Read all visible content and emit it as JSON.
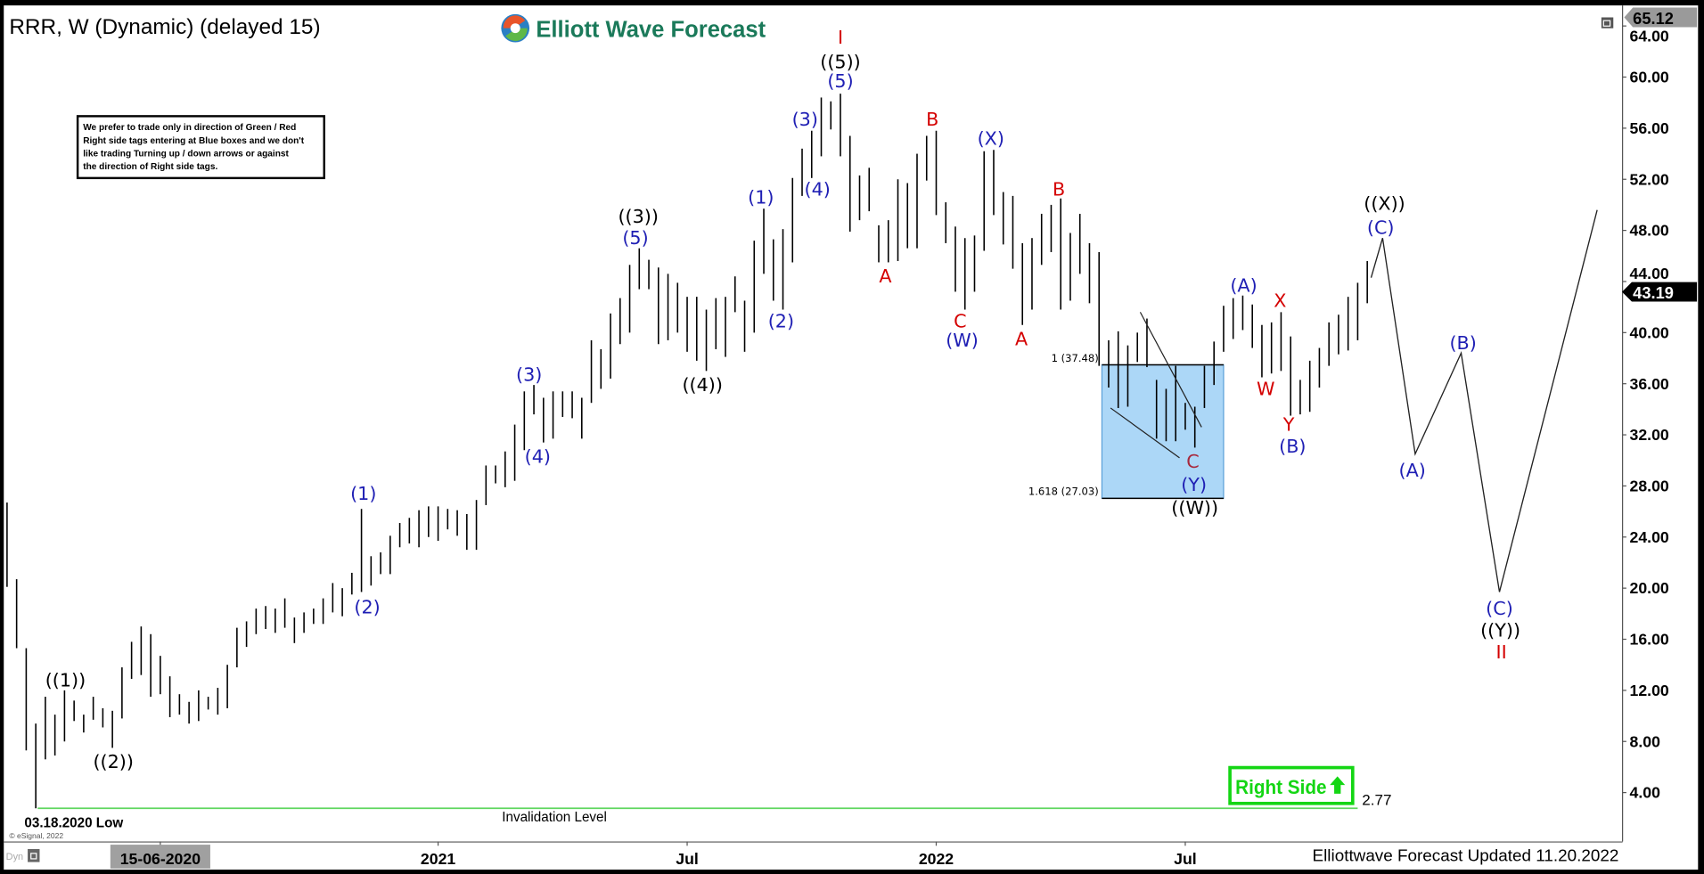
{
  "header": {
    "title": "RRR, W (Dynamic) (delayed 15)",
    "logo_text": "Elliott Wave Forecast"
  },
  "disclaimer": [
    "We prefer to trade only in direction of Green / Red",
    "Right side tags entering at Blue boxes and we don't",
    "like trading Turning up / down arrows or against",
    "the direction of Right side tags."
  ],
  "footer": {
    "updated": "Elliottwave Forecast Updated 11.20.2022",
    "copyright": "© eSignal, 2022",
    "dyn": "Dyn",
    "low_note": "03.18.2020 Low"
  },
  "colors": {
    "wave_blue": "#1f1fb4",
    "wave_red": "#d40000",
    "wave_black": "#000000",
    "fib_box": "#acd7f7",
    "invalidation": "#5fd65f",
    "right_side": "#14d614"
  },
  "chart_data": {
    "type": "ohlc-bar",
    "symbol": "RRR",
    "interval": "W",
    "ylim": [
      0.2,
      65.6
    ],
    "grid": false,
    "y_ticks": [
      "4.00",
      "8.00",
      "12.00",
      "16.00",
      "20.00",
      "24.00",
      "28.00",
      "32.00",
      "36.00",
      "40.00",
      "44.00",
      "48.00",
      "52.00",
      "56.00",
      "60.00",
      "64.00"
    ],
    "x_ticks": [
      {
        "label": "15-06-2020",
        "bar": 16,
        "highlight": true
      },
      {
        "label": "2021",
        "bar": 45
      },
      {
        "label": "Jul",
        "bar": 71
      },
      {
        "label": "2022",
        "bar": 97
      },
      {
        "label": "Jul",
        "bar": 123
      }
    ],
    "last_price": "43.19",
    "high_marker": "65.12",
    "bars_high_low": [
      [
        26.7,
        20.1
      ],
      [
        20.7,
        15.3
      ],
      [
        15.3,
        7.3
      ],
      [
        9.4,
        2.77
      ],
      [
        11.5,
        6.6
      ],
      [
        10.1,
        6.9
      ],
      [
        12.0,
        8.0
      ],
      [
        11.2,
        9.6
      ],
      [
        10.1,
        8.7
      ],
      [
        11.5,
        9.7
      ],
      [
        10.6,
        9.1
      ],
      [
        10.4,
        7.5
      ],
      [
        13.8,
        9.8
      ],
      [
        15.8,
        12.9
      ],
      [
        17.0,
        13.2
      ],
      [
        16.4,
        11.5
      ],
      [
        14.7,
        11.7
      ],
      [
        13.1,
        9.9
      ],
      [
        11.7,
        10.1
      ],
      [
        11.1,
        9.4
      ],
      [
        12.0,
        9.6
      ],
      [
        11.5,
        10.5
      ],
      [
        12.2,
        10.1
      ],
      [
        14.0,
        10.6
      ],
      [
        16.9,
        13.8
      ],
      [
        17.4,
        15.4
      ],
      [
        18.4,
        16.4
      ],
      [
        18.6,
        16.8
      ],
      [
        18.4,
        16.5
      ],
      [
        19.2,
        16.9
      ],
      [
        17.7,
        15.7
      ],
      [
        18.1,
        16.5
      ],
      [
        18.4,
        17.2
      ],
      [
        19.2,
        17.2
      ],
      [
        20.4,
        18.1
      ],
      [
        20.0,
        17.8
      ],
      [
        21.2,
        19.5
      ],
      [
        26.2,
        19.7
      ],
      [
        22.5,
        20.2
      ],
      [
        22.8,
        21.1
      ],
      [
        24.1,
        21.1
      ],
      [
        25.1,
        23.2
      ],
      [
        25.5,
        23.5
      ],
      [
        26.1,
        23.2
      ],
      [
        26.4,
        24.0
      ],
      [
        26.4,
        23.7
      ],
      [
        26.2,
        24.6
      ],
      [
        26.1,
        24.1
      ],
      [
        25.8,
        23.0
      ],
      [
        26.9,
        23.0
      ],
      [
        29.6,
        26.5
      ],
      [
        29.6,
        28.2
      ],
      [
        30.7,
        27.9
      ],
      [
        32.8,
        28.4
      ],
      [
        35.4,
        30.8
      ],
      [
        35.9,
        33.6
      ],
      [
        34.9,
        31.4
      ],
      [
        35.4,
        31.7
      ],
      [
        35.4,
        33.4
      ],
      [
        35.4,
        33.3
      ],
      [
        34.9,
        31.7
      ],
      [
        39.4,
        34.5
      ],
      [
        38.7,
        35.6
      ],
      [
        41.5,
        36.4
      ],
      [
        42.7,
        39.1
      ],
      [
        45.3,
        40.0
      ],
      [
        46.6,
        43.4
      ],
      [
        45.7,
        43.4
      ],
      [
        45.1,
        39.1
      ],
      [
        44.6,
        39.4
      ],
      [
        43.9,
        40.0
      ],
      [
        42.8,
        38.5
      ],
      [
        42.8,
        37.8
      ],
      [
        41.8,
        37.0
      ],
      [
        42.7,
        38.7
      ],
      [
        42.8,
        38.1
      ],
      [
        44.4,
        41.6
      ],
      [
        42.5,
        38.5
      ],
      [
        47.2,
        40.0
      ],
      [
        49.7,
        44.6
      ],
      [
        47.3,
        42.5
      ],
      [
        48.1,
        41.8
      ],
      [
        52.1,
        45.5
      ],
      [
        54.4,
        50.7
      ],
      [
        55.8,
        52.1
      ],
      [
        58.4,
        53.8
      ],
      [
        58.1,
        55.9
      ],
      [
        58.7,
        53.8
      ],
      [
        55.4,
        47.9
      ],
      [
        52.3,
        48.8
      ],
      [
        52.9,
        49.5
      ],
      [
        48.4,
        45.5
      ],
      [
        48.8,
        45.5
      ],
      [
        52.0,
        45.6
      ],
      [
        51.7,
        46.6
      ],
      [
        54.0,
        46.6
      ],
      [
        55.4,
        51.9
      ],
      [
        55.8,
        49.2
      ],
      [
        50.2,
        47.0
      ],
      [
        48.3,
        43.2
      ],
      [
        47.4,
        41.8
      ],
      [
        47.6,
        43.2
      ],
      [
        54.2,
        46.4
      ],
      [
        54.3,
        49.2
      ],
      [
        51.0,
        46.9
      ],
      [
        50.7,
        45.0
      ],
      [
        47.0,
        40.6
      ],
      [
        47.4,
        41.8
      ],
      [
        49.3,
        45.3
      ],
      [
        50.0,
        46.3
      ],
      [
        50.5,
        41.8
      ],
      [
        47.8,
        42.5
      ],
      [
        49.3,
        44.6
      ],
      [
        47.0,
        42.3
      ],
      [
        46.3,
        37.4
      ],
      [
        39.4,
        35.7
      ],
      [
        40.1,
        34.1
      ],
      [
        39.0,
        34.2
      ],
      [
        40.0,
        37.7
      ],
      [
        41.1,
        37.3
      ],
      [
        36.3,
        31.7
      ],
      [
        35.6,
        31.5
      ],
      [
        37.4,
        31.5
      ],
      [
        34.5,
        32.4
      ],
      [
        34.2,
        31.0
      ],
      [
        37.4,
        34.1
      ],
      [
        39.3,
        35.9
      ],
      [
        42.1,
        38.5
      ],
      [
        42.7,
        39.5
      ],
      [
        42.9,
        40.2
      ],
      [
        42.2,
        38.8
      ],
      [
        40.6,
        36.5
      ],
      [
        40.8,
        36.8
      ],
      [
        41.6,
        37.0
      ],
      [
        39.7,
        33.5
      ],
      [
        36.3,
        33.6
      ],
      [
        37.8,
        33.8
      ],
      [
        38.8,
        35.7
      ],
      [
        40.8,
        37.4
      ],
      [
        41.4,
        38.3
      ],
      [
        42.8,
        38.6
      ],
      [
        43.9,
        39.4
      ],
      [
        45.6,
        42.3
      ]
    ],
    "projection_path": [
      [
        142.4,
        44.3
      ],
      [
        143.6,
        47.4
      ],
      [
        147.0,
        30.5
      ],
      [
        151.8,
        38.4
      ],
      [
        155.8,
        19.7
      ],
      [
        166.0,
        49.6
      ]
    ],
    "fib_box": {
      "bar_from": 114.3,
      "bar_to": 127.0,
      "upper": 37.48,
      "lower": 27.03,
      "upper_label": "1 (37.48)",
      "lower_label": "1.618 (27.03)"
    },
    "triangle_lines": [
      [
        [
          118.3,
          41.6
        ],
        [
          124.7,
          32.6
        ]
      ],
      [
        [
          115.2,
          34.1
        ],
        [
          122.4,
          30.2
        ]
      ]
    ],
    "invalidation": {
      "price": 2.77,
      "bar_from": 3.2,
      "bar_to": 141,
      "label": "Invalidation Level",
      "value_label": "2.77"
    },
    "right_side_tag": "Right Side",
    "wave_labels": [
      {
        "text": "I",
        "color": "red",
        "bar": 87.0,
        "price": 63.1,
        "big": true
      },
      {
        "text": "((5))",
        "color": "black",
        "bar": 87.0,
        "price": 61.2
      },
      {
        "text": "(5)",
        "color": "blue",
        "bar": 87.0,
        "price": 59.7
      },
      {
        "text": "(3)",
        "color": "blue",
        "bar": 83.3,
        "price": 56.7
      },
      {
        "text": "(4)",
        "color": "blue",
        "bar": 84.6,
        "price": 51.2
      },
      {
        "text": "(1)",
        "color": "blue",
        "bar": 78.7,
        "price": 50.6
      },
      {
        "text": "(2)",
        "color": "blue",
        "bar": 80.8,
        "price": 40.9
      },
      {
        "text": "((3))",
        "color": "black",
        "bar": 65.9,
        "price": 49.1
      },
      {
        "text": "(5)",
        "color": "blue",
        "bar": 65.6,
        "price": 47.4
      },
      {
        "text": "((4))",
        "color": "black",
        "bar": 72.6,
        "price": 35.9
      },
      {
        "text": "(3)",
        "color": "blue",
        "bar": 54.5,
        "price": 36.7
      },
      {
        "text": "(4)",
        "color": "blue",
        "bar": 55.4,
        "price": 30.3
      },
      {
        "text": "(1)",
        "color": "blue",
        "bar": 37.2,
        "price": 27.4
      },
      {
        "text": "(2)",
        "color": "blue",
        "bar": 37.6,
        "price": 18.5
      },
      {
        "text": "((1))",
        "color": "black",
        "bar": 6.1,
        "price": 12.8
      },
      {
        "text": "((2))",
        "color": "black",
        "bar": 11.1,
        "price": 6.4
      },
      {
        "text": "A",
        "color": "red",
        "bar": 91.7,
        "price": 44.4
      },
      {
        "text": "B",
        "color": "red",
        "bar": 96.6,
        "price": 56.7
      },
      {
        "text": "C",
        "color": "red",
        "bar": 99.5,
        "price": 40.9
      },
      {
        "text": "(W)",
        "color": "blue",
        "bar": 99.7,
        "price": 39.4
      },
      {
        "text": "(X)",
        "color": "blue",
        "bar": 102.7,
        "price": 55.2
      },
      {
        "text": "A",
        "color": "red",
        "bar": 105.9,
        "price": 39.5
      },
      {
        "text": "B",
        "color": "red",
        "bar": 109.8,
        "price": 51.2
      },
      {
        "text": "C",
        "color": "darkred",
        "bar": 123.8,
        "price": 29.9
      },
      {
        "text": "(Y)",
        "color": "blue",
        "bar": 123.9,
        "price": 28.1
      },
      {
        "text": "((W))",
        "color": "black",
        "bar": 124.0,
        "price": 26.3
      },
      {
        "text": "(A)",
        "color": "blue",
        "bar": 129.1,
        "price": 43.7
      },
      {
        "text": "X",
        "color": "red",
        "bar": 132.9,
        "price": 42.5
      },
      {
        "text": "W",
        "color": "red",
        "bar": 131.4,
        "price": 35.6
      },
      {
        "text": "Y",
        "color": "red",
        "bar": 133.8,
        "price": 32.8
      },
      {
        "text": "(B)",
        "color": "blue",
        "bar": 134.2,
        "price": 31.1
      },
      {
        "text": "((X))",
        "color": "black",
        "bar": 143.8,
        "price": 50.1
      },
      {
        "text": "(C)",
        "color": "blue",
        "bar": 143.4,
        "price": 48.2
      },
      {
        "text": "(A)",
        "color": "blue",
        "bar": 146.7,
        "price": 29.2
      },
      {
        "text": "(B)",
        "color": "blue",
        "bar": 152.0,
        "price": 39.2
      },
      {
        "text": "(C)",
        "color": "blue",
        "bar": 155.8,
        "price": 18.4
      },
      {
        "text": "((Y))",
        "color": "black",
        "bar": 155.9,
        "price": 16.7
      },
      {
        "text": "II",
        "color": "red",
        "bar": 156.0,
        "price": 15.0,
        "big": true
      }
    ]
  }
}
